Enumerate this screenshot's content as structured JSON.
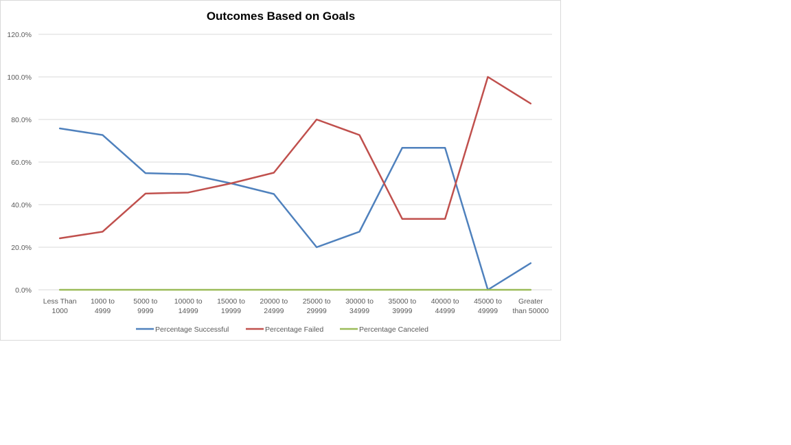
{
  "chart_data": {
    "type": "line",
    "title": "Outcomes Based on Goals",
    "xlabel": "",
    "ylabel": "",
    "ylim": [
      0,
      120
    ],
    "y_ticks": [
      "0.0%",
      "20.0%",
      "40.0%",
      "60.0%",
      "80.0%",
      "100.0%",
      "120.0%"
    ],
    "y_tick_values": [
      0,
      20,
      40,
      60,
      80,
      100,
      120
    ],
    "categories": [
      [
        "Less Than",
        "1000"
      ],
      [
        "1000 to",
        "4999"
      ],
      [
        "5000 to",
        "9999"
      ],
      [
        "10000 to",
        "14999"
      ],
      [
        "15000 to",
        "19999"
      ],
      [
        "20000 to",
        "24999"
      ],
      [
        "25000 to",
        "29999"
      ],
      [
        "30000 to",
        "34999"
      ],
      [
        "35000 to",
        "39999"
      ],
      [
        "40000 to",
        "44999"
      ],
      [
        "45000 to",
        "49999"
      ],
      [
        "Greater",
        "than 50000"
      ]
    ],
    "grid": true,
    "legend_position": "bottom",
    "series": [
      {
        "name": "Percentage Successful",
        "color": "#4f81bd",
        "values": [
          75.8,
          72.7,
          54.8,
          54.3,
          50.0,
          45.0,
          20.0,
          27.3,
          66.7,
          66.7,
          0.0,
          12.5
        ]
      },
      {
        "name": "Percentage Failed",
        "color": "#c0504d",
        "values": [
          24.2,
          27.3,
          45.2,
          45.7,
          50.0,
          55.0,
          80.0,
          72.7,
          33.3,
          33.3,
          100.0,
          87.5
        ]
      },
      {
        "name": "Percentage Canceled",
        "color": "#9bbb59",
        "values": [
          0,
          0,
          0,
          0,
          0,
          0,
          0,
          0,
          0,
          0,
          0,
          0
        ]
      }
    ]
  }
}
